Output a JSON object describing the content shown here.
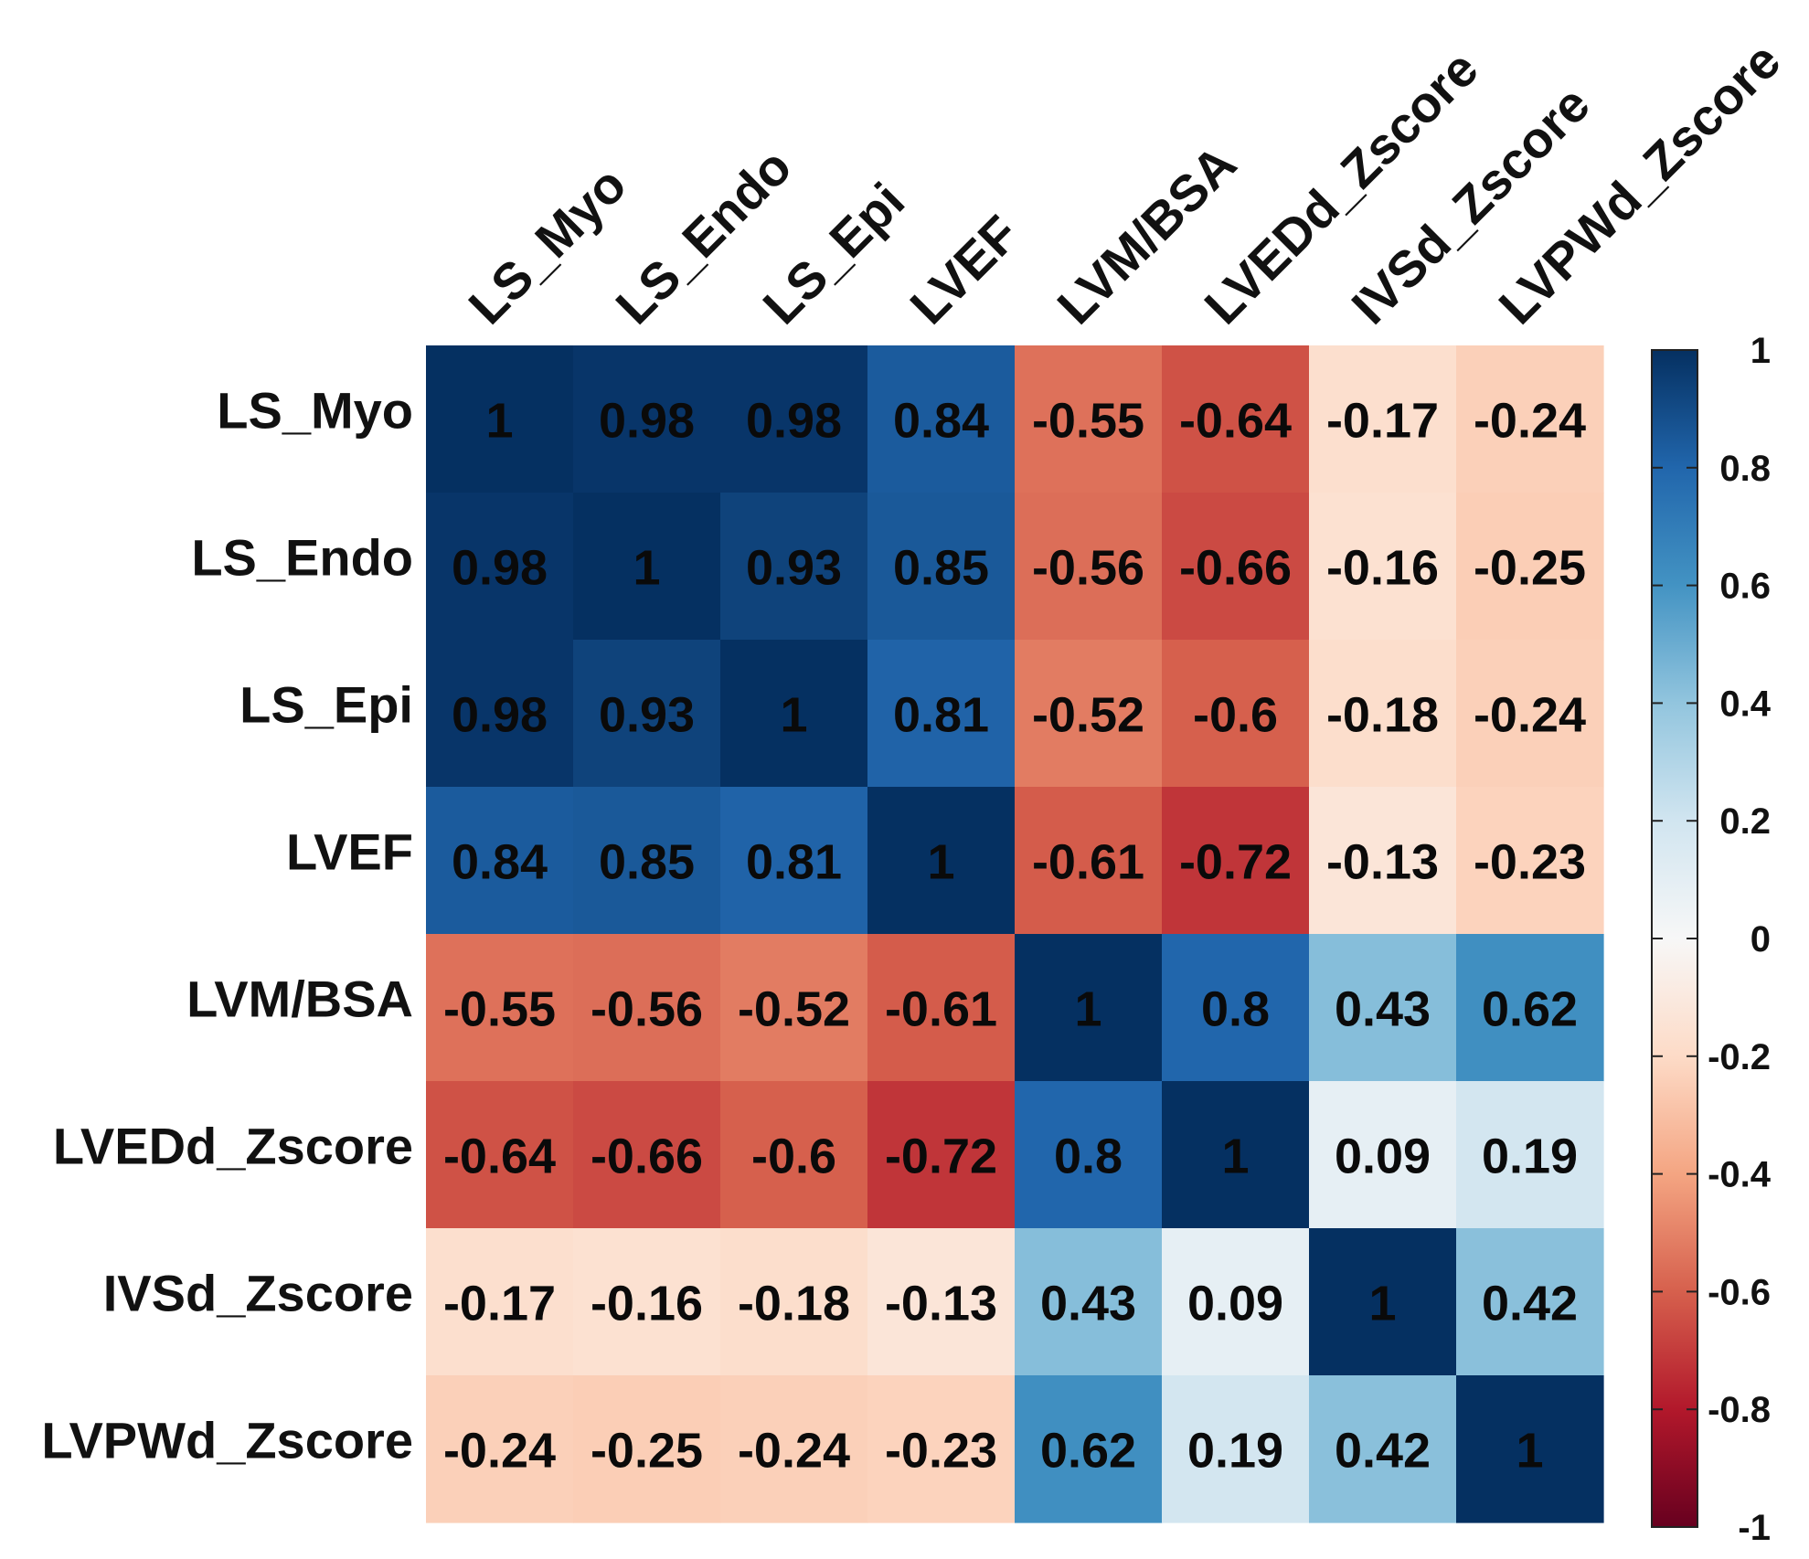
{
  "chart_data": {
    "type": "heatmap",
    "title": "",
    "labels": [
      "LS_Myo",
      "LS_Endo",
      "LS_Epi",
      "LVEF",
      "LVM/BSA",
      "LVEDd_Zscore",
      "IVSd_Zscore",
      "LVPWd_Zscore"
    ],
    "values": [
      [
        1,
        0.98,
        0.98,
        0.84,
        -0.55,
        -0.64,
        -0.17,
        -0.24
      ],
      [
        0.98,
        1,
        0.93,
        0.85,
        -0.56,
        -0.66,
        -0.16,
        -0.25
      ],
      [
        0.98,
        0.93,
        1,
        0.81,
        -0.52,
        -0.6,
        -0.18,
        -0.24
      ],
      [
        0.84,
        0.85,
        0.81,
        1,
        -0.61,
        -0.72,
        -0.13,
        -0.23
      ],
      [
        -0.55,
        -0.56,
        -0.52,
        -0.61,
        1,
        0.8,
        0.43,
        0.62
      ],
      [
        -0.64,
        -0.66,
        -0.6,
        -0.72,
        0.8,
        1,
        0.09,
        0.19
      ],
      [
        -0.17,
        -0.16,
        -0.18,
        -0.13,
        0.43,
        0.09,
        1,
        0.42
      ],
      [
        -0.24,
        -0.25,
        -0.24,
        -0.23,
        0.62,
        0.19,
        0.42,
        1
      ]
    ],
    "value_labels": [
      [
        "1",
        "0.98",
        "0.98",
        "0.84",
        "-0.55",
        "-0.64",
        "-0.17",
        "-0.24"
      ],
      [
        "0.98",
        "1",
        "0.93",
        "0.85",
        "-0.56",
        "-0.66",
        "-0.16",
        "-0.25"
      ],
      [
        "0.98",
        "0.93",
        "1",
        "0.81",
        "-0.52",
        "-0.6",
        "-0.18",
        "-0.24"
      ],
      [
        "0.84",
        "0.85",
        "0.81",
        "1",
        "-0.61",
        "-0.72",
        "-0.13",
        "-0.23"
      ],
      [
        "-0.55",
        "-0.56",
        "-0.52",
        "-0.61",
        "1",
        "0.8",
        "0.43",
        "0.62"
      ],
      [
        "-0.64",
        "-0.66",
        "-0.6",
        "-0.72",
        "0.8",
        "1",
        "0.09",
        "0.19"
      ],
      [
        "-0.17",
        "-0.16",
        "-0.18",
        "-0.13",
        "0.43",
        "0.09",
        "1",
        "0.42"
      ],
      [
        "-0.24",
        "-0.25",
        "-0.24",
        "-0.23",
        "0.62",
        "0.19",
        "0.42",
        "1"
      ]
    ],
    "colorbar": {
      "range": [
        -1,
        1
      ],
      "ticks": [
        1,
        0.8,
        0.6,
        0.4,
        0.2,
        0,
        -0.2,
        -0.4,
        -0.6,
        -0.8,
        -1
      ],
      "tick_labels": [
        "1",
        "0.8",
        "0.6",
        "0.4",
        "0.2",
        "0",
        "-0.2",
        "-0.4",
        "-0.6",
        "-0.8",
        "-1"
      ],
      "colors": {
        "1": "#053061",
        "0.8": "#2166AC",
        "0.6": "#4393C3",
        "0.4": "#92C5DE",
        "0.2": "#D1E5F0",
        "0": "#F7F7F7",
        "-0.2": "#FDDBC7",
        "-0.4": "#F4A582",
        "-0.6": "#D6604D",
        "-0.8": "#B2182B",
        "-1": "#67001F"
      },
      "placement": "right"
    }
  }
}
